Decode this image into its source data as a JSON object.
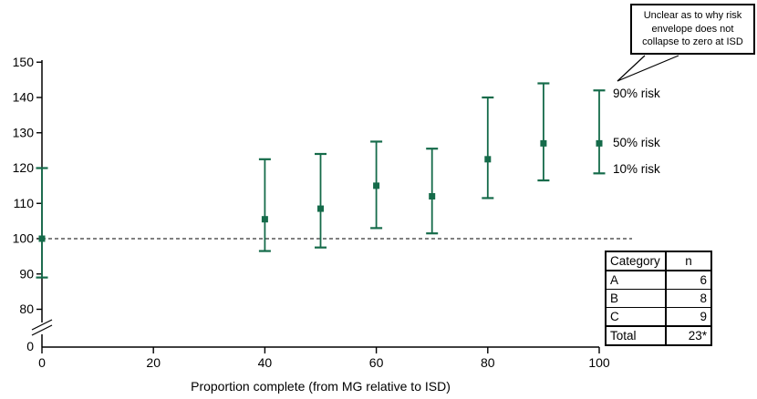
{
  "chart_data": {
    "type": "error-bar",
    "title": "",
    "xlabel": "Proportion complete (from MG relative to ISD)",
    "ylabel": "",
    "x": [
      0,
      40,
      50,
      60,
      70,
      80,
      90,
      100
    ],
    "series": [
      {
        "name": "90% risk",
        "role": "upper",
        "values": [
          120,
          122.5,
          124,
          127.5,
          125.5,
          140,
          144,
          142
        ]
      },
      {
        "name": "50% risk",
        "role": "median",
        "values": [
          100,
          105.5,
          108.5,
          115,
          112,
          122.5,
          127,
          127
        ]
      },
      {
        "name": "10% risk",
        "role": "lower",
        "values": [
          89,
          96.5,
          97.5,
          103,
          101.5,
          111.5,
          116.5,
          118.5
        ]
      }
    ],
    "x_ticks": [
      "0",
      "20",
      "40",
      "60",
      "80",
      "100"
    ],
    "y_ticks": [
      "150",
      "140",
      "130",
      "120",
      "110",
      "100",
      "90",
      "80"
    ],
    "y_axis_zero_label": "0",
    "y_axis_break": true,
    "baseline": 100,
    "ylim_display": [
      80,
      150
    ],
    "xlim": [
      0,
      100
    ],
    "grid": false,
    "legend_position": "right-of-last-point",
    "marker_color": "#156B4A",
    "axis_color": "#000000",
    "annotation": "Unclear as to why risk envelope does not collapse to zero at ISD"
  },
  "sample_table": {
    "headers": [
      "Category",
      "n"
    ],
    "rows": [
      [
        "A",
        "6"
      ],
      [
        "B",
        "8"
      ],
      [
        "C",
        "9"
      ]
    ],
    "total_row": [
      "Total",
      "23*"
    ]
  }
}
